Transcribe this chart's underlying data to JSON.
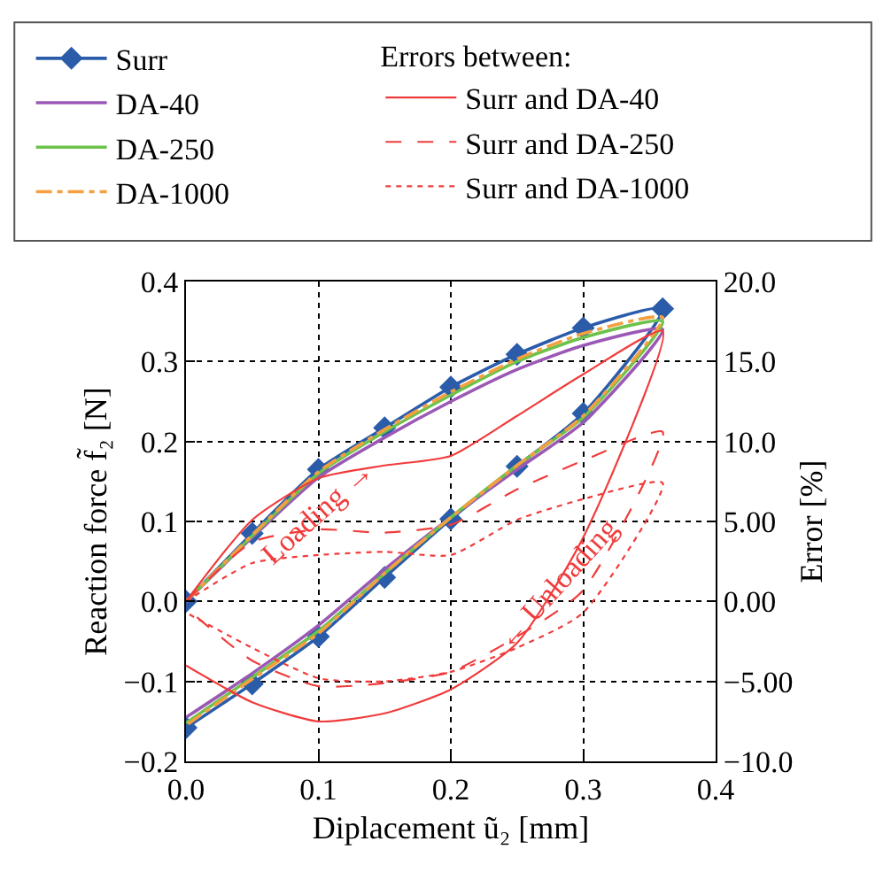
{
  "chart_data": {
    "type": "line",
    "xlabel": "Diplacement ũ₂ [mm]",
    "ylabel": "Reaction force f̃₂ [N]",
    "y2label": "Error [%]",
    "legend_title": "Errors between:",
    "xlim": [
      0,
      0.4
    ],
    "xticks": [
      {
        "value": 0,
        "label": "0.0"
      },
      {
        "value": 0.1,
        "label": "0.1"
      },
      {
        "value": 0.2,
        "label": "0.2"
      },
      {
        "value": 0.3,
        "label": "0.3"
      },
      {
        "value": 0.4,
        "label": "0.4"
      }
    ],
    "ylim": [
      -0.2,
      0.4
    ],
    "yticks": [
      {
        "value": -0.2,
        "label": "−0.2"
      },
      {
        "value": -0.1,
        "label": "−0.1"
      },
      {
        "value": 0,
        "label": "0.0"
      },
      {
        "value": 0.1,
        "label": "0.1"
      },
      {
        "value": 0.2,
        "label": "0.2"
      },
      {
        "value": 0.3,
        "label": "0.3"
      },
      {
        "value": 0.4,
        "label": "0.4"
      }
    ],
    "y2lim": [
      -10,
      20
    ],
    "y2ticks": [
      {
        "value": -10,
        "label": "−10.0"
      },
      {
        "value": -5,
        "label": "−5.00"
      },
      {
        "value": 0,
        "label": "0.00"
      },
      {
        "value": 5,
        "label": "5.00"
      },
      {
        "value": 10,
        "label": "10.0"
      },
      {
        "value": 15,
        "label": "15.0"
      },
      {
        "value": 20,
        "label": "20.0"
      }
    ],
    "grid": true,
    "legend": "top",
    "series": [
      {
        "name": "Surr",
        "color": "#2a5caa",
        "marker": "diamond",
        "line_style": "solid",
        "x": [
          0,
          0.05,
          0.1,
          0.15,
          0.2,
          0.25,
          0.3,
          0.36,
          0.3,
          0.25,
          0.2,
          0.15,
          0.1,
          0.05,
          0
        ],
        "values": [
          0,
          0.085,
          0.165,
          0.217,
          0.268,
          0.309,
          0.342,
          0.366,
          0.235,
          0.169,
          0.103,
          0.03,
          -0.044,
          -0.103,
          -0.158
        ]
      },
      {
        "name": "DA-40",
        "color": "#9b59b6",
        "marker": "none",
        "line_style": "solid",
        "x": [
          0,
          0.05,
          0.1,
          0.15,
          0.2,
          0.25,
          0.3,
          0.36,
          0.3,
          0.25,
          0.2,
          0.15,
          0.1,
          0.05,
          0
        ],
        "values": [
          0,
          0.08,
          0.155,
          0.205,
          0.25,
          0.29,
          0.32,
          0.34,
          0.224,
          0.165,
          0.105,
          0.04,
          -0.03,
          -0.09,
          -0.145
        ]
      },
      {
        "name": "DA-250",
        "color": "#6cc24a",
        "marker": "none",
        "line_style": "solid",
        "x": [
          0,
          0.05,
          0.1,
          0.15,
          0.2,
          0.25,
          0.3,
          0.36,
          0.3,
          0.25,
          0.2,
          0.15,
          0.1,
          0.05,
          0
        ],
        "values": [
          0,
          0.082,
          0.16,
          0.212,
          0.258,
          0.3,
          0.33,
          0.35,
          0.23,
          0.17,
          0.105,
          0.035,
          -0.037,
          -0.095,
          -0.152
        ]
      },
      {
        "name": "DA-1000",
        "color": "#f5a040",
        "marker": "none",
        "line_style": "dashdot",
        "x": [
          0,
          0.05,
          0.1,
          0.15,
          0.2,
          0.25,
          0.3,
          0.36,
          0.3,
          0.25,
          0.2,
          0.15,
          0.1,
          0.05,
          0
        ],
        "values": [
          0,
          0.083,
          0.162,
          0.215,
          0.262,
          0.303,
          0.335,
          0.355,
          0.232,
          0.17,
          0.105,
          0.035,
          -0.04,
          -0.097,
          -0.155
        ]
      },
      {
        "name": "Surr and DA-40",
        "color": "#f03c3c",
        "marker": "none",
        "line_style": "solid",
        "axis": "y2",
        "x": [
          0,
          0.05,
          0.1,
          0.15,
          0.2,
          0.25,
          0.3,
          0.36,
          0.3,
          0.25,
          0.2,
          0.15,
          0.1,
          0.05,
          0
        ],
        "values": [
          0,
          5.1,
          7.7,
          8.5,
          9.1,
          11.6,
          14.2,
          16.9,
          4.0,
          -2.6,
          -5.5,
          -7.0,
          -7.5,
          -6.3,
          -4.0
        ]
      },
      {
        "name": "Surr and DA-250",
        "color": "#f03c3c",
        "marker": "none",
        "line_style": "dashed",
        "axis": "y2",
        "x": [
          0,
          0.05,
          0.1,
          0.15,
          0.2,
          0.25,
          0.3,
          0.36,
          0.3,
          0.25,
          0.2,
          0.15,
          0.1,
          0.05,
          0
        ],
        "values": [
          0,
          3.7,
          4.5,
          4.3,
          4.8,
          7.0,
          8.8,
          10.6,
          0.7,
          -2.2,
          -4.4,
          -5.1,
          -5.3,
          -3.7,
          -0.4
        ]
      },
      {
        "name": "Surr and DA-1000",
        "color": "#f03c3c",
        "marker": "none",
        "line_style": "dotted",
        "axis": "y2",
        "x": [
          0,
          0.05,
          0.1,
          0.15,
          0.2,
          0.25,
          0.3,
          0.36,
          0.3,
          0.25,
          0.2,
          0.15,
          0.1,
          0.05,
          0
        ],
        "values": [
          0,
          2.4,
          2.9,
          3.1,
          2.9,
          5.1,
          6.4,
          7.4,
          -0.7,
          -2.9,
          -4.4,
          -5.0,
          -4.8,
          -2.9,
          -0.7
        ]
      }
    ],
    "annotations": [
      "Loading →",
      "← Unloading"
    ]
  }
}
